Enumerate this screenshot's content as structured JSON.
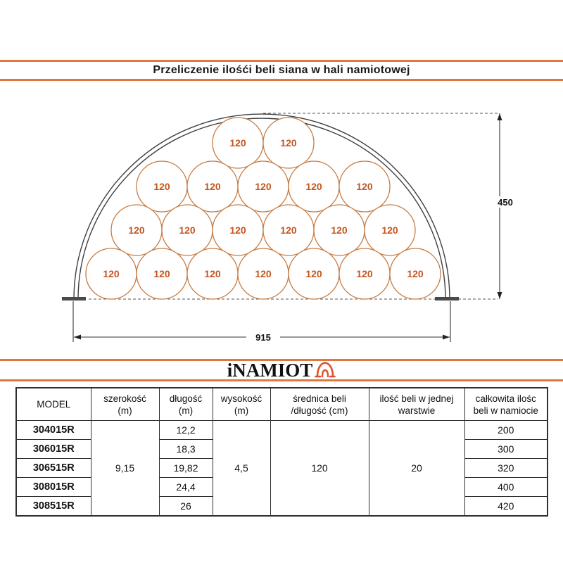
{
  "title": "Przeliczenie ilośći beli siana w hali namiotowej",
  "logo": {
    "brand": "iNAMIOT",
    "icon": "tent-arch-icon",
    "icon_color": "#e0512e"
  },
  "colors": {
    "accent_orange": "#e0773c",
    "bale_stroke": "#c67c44",
    "bale_text": "#c4551e",
    "line_dark": "#3f3f3f"
  },
  "diagram": {
    "bale_label": "120",
    "rows_top_to_bottom": [
      2,
      5,
      6,
      7
    ],
    "height_dim": "450",
    "width_dim": "915"
  },
  "table": {
    "headers": {
      "model": "MODEL",
      "width_l1": "szerokość",
      "width_l2": "(m)",
      "length_l1": "długość",
      "length_l2": "(m)",
      "height_l1": "wysokość",
      "height_l2": "(m)",
      "diameter_l1": "średnica beli",
      "diameter_l2": "/długość (cm)",
      "per_layer_l1": "ilość beli w jednej",
      "per_layer_l2": "warstwie",
      "total_l1": "całkowita ilośc",
      "total_l2": "beli w namiocie"
    },
    "shared": {
      "width": "9,15",
      "height": "4,5",
      "diameter": "120",
      "per_layer": "20"
    },
    "rows": [
      {
        "model": "304015R",
        "length": "12,2",
        "total": "200"
      },
      {
        "model": "306015R",
        "length": "18,3",
        "total": "300"
      },
      {
        "model": "306515R",
        "length": "19,82",
        "total": "320"
      },
      {
        "model": "308015R",
        "length": "24,4",
        "total": "400"
      },
      {
        "model": "308515R",
        "length": "26",
        "total": "420"
      }
    ]
  }
}
